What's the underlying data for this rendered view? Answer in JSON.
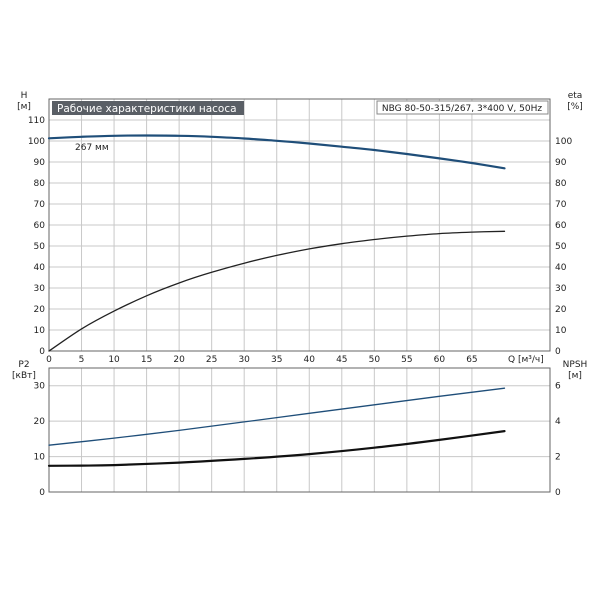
{
  "chart_data": [
    {
      "type": "line",
      "title": "Рабочие характеристики насоса",
      "subtitle": "NBG 80-50-315/267, 3*400 V, 50Hz",
      "xlabel": "Q [м³/ч]",
      "ylabel_left": [
        "H",
        "[м]"
      ],
      "ylabel_right": [
        "eta",
        "[%]"
      ],
      "xlim": [
        0,
        77
      ],
      "ylim_left": [
        0,
        120
      ],
      "ylim_right": [
        0,
        120
      ],
      "x_ticks": [
        0,
        5,
        10,
        15,
        20,
        25,
        30,
        35,
        40,
        45,
        50,
        55,
        60,
        65
      ],
      "y_ticks_left": [
        0,
        10,
        20,
        30,
        40,
        50,
        60,
        70,
        80,
        90,
        100,
        110
      ],
      "y_ticks_right": [
        0,
        10,
        20,
        30,
        40,
        50,
        60,
        70,
        80,
        90,
        100
      ],
      "grid": true,
      "series": [
        {
          "axis": "left",
          "color": "#1f4e79",
          "label": "267 мм",
          "x": [
            0,
            5,
            10,
            15,
            20,
            25,
            30,
            35,
            40,
            45,
            50,
            55,
            60,
            65,
            70
          ],
          "y": [
            101.3,
            102.0,
            102.5,
            102.6,
            102.5,
            102.0,
            101.2,
            100.1,
            98.8,
            97.3,
            95.7,
            93.8,
            91.7,
            89.5,
            87.0
          ]
        },
        {
          "axis": "right",
          "color": "#222222",
          "x": [
            0,
            5,
            10,
            15,
            20,
            25,
            30,
            35,
            40,
            45,
            50,
            55,
            60,
            65,
            70
          ],
          "y": [
            0,
            10.5,
            19.0,
            26.3,
            32.4,
            37.5,
            41.8,
            45.5,
            48.6,
            51.1,
            53.1,
            54.7,
            55.9,
            56.6,
            57.0
          ]
        }
      ]
    },
    {
      "type": "line",
      "ylabel_left": [
        "P2",
        "[кВт]"
      ],
      "ylabel_right": [
        "NPSH",
        "[м]"
      ],
      "xlim": [
        0,
        77
      ],
      "ylim_left": [
        0,
        35
      ],
      "ylim_right": [
        0,
        7
      ],
      "y_ticks_left": [
        0,
        10,
        20,
        30
      ],
      "y_ticks_right": [
        0,
        2,
        4,
        6
      ],
      "grid": true,
      "series": [
        {
          "axis": "left",
          "color": "#1f4e79",
          "x": [
            0,
            10,
            20,
            30,
            40,
            50,
            60,
            70
          ],
          "y": [
            13.2,
            15.2,
            17.4,
            19.8,
            22.2,
            24.6,
            27.0,
            29.3
          ]
        },
        {
          "axis": "right",
          "color": "#111111",
          "x": [
            0,
            5,
            10,
            20,
            30,
            40,
            50,
            60,
            70
          ],
          "y": [
            1.48,
            1.49,
            1.52,
            1.66,
            1.87,
            2.14,
            2.5,
            2.94,
            3.44
          ]
        }
      ]
    }
  ]
}
